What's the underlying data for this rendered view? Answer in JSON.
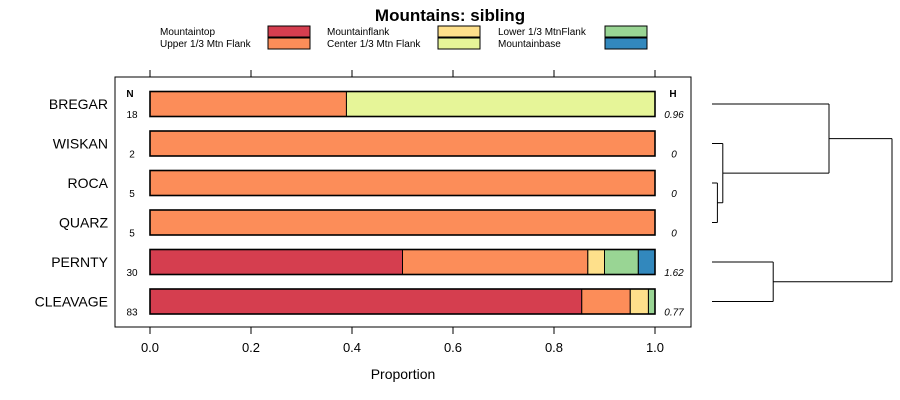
{
  "chart_data": {
    "type": "bar",
    "stacked": true,
    "orientation": "horizontal",
    "title": "Mountains: sibling",
    "xlabel": "Proportion",
    "ylabel": "",
    "xlim": [
      0,
      1
    ],
    "xticks": [
      "0.0",
      "0.2",
      "0.4",
      "0.6",
      "0.8",
      "1.0"
    ],
    "xtick_values": [
      0,
      0.2,
      0.4,
      0.6,
      0.8,
      1.0
    ],
    "n_header": "N",
    "h_header": "H",
    "legend": [
      {
        "name": "Mountaintop",
        "color": "#d53e4f"
      },
      {
        "name": "Upper 1/3 Mtn Flank",
        "color": "#fc8d59"
      },
      {
        "name": "Mountainflank",
        "color": "#fee08b"
      },
      {
        "name": "Center 1/3 Mtn Flank",
        "color": "#e6f598"
      },
      {
        "name": "Lower 1/3 MtnFlank",
        "color": "#99d594"
      },
      {
        "name": "Mountainbase",
        "color": "#3288bd"
      }
    ],
    "categories": [
      "BREGAR",
      "WISKAN",
      "ROCA",
      "QUARZ",
      "PERNTY",
      "CLEAVAGE"
    ],
    "n_values": [
      "18",
      "2",
      "5",
      "5",
      "30",
      "83"
    ],
    "h_values": [
      "0.96",
      "0",
      "0",
      "0",
      "1.62",
      "0.77"
    ],
    "series": [
      {
        "name": "Mountaintop",
        "values": [
          0,
          0,
          0,
          0,
          0.5,
          0.855
        ]
      },
      {
        "name": "Upper 1/3 Mtn Flank",
        "values": [
          0.389,
          1,
          1,
          1,
          0.367,
          0.096
        ]
      },
      {
        "name": "Mountainflank",
        "values": [
          0,
          0,
          0,
          0,
          0.033,
          0.036
        ]
      },
      {
        "name": "Center 1/3 Mtn Flank",
        "values": [
          0.611,
          0,
          0,
          0,
          0,
          0
        ]
      },
      {
        "name": "Lower 1/3 MtnFlank",
        "values": [
          0,
          0,
          0,
          0,
          0.067,
          0.013
        ]
      },
      {
        "name": "Mountainbase",
        "values": [
          0,
          0,
          0,
          0,
          0.033,
          0
        ]
      }
    ],
    "dendrogram": {
      "leaf_order": [
        "BREGAR",
        "WISKAN",
        "ROCA",
        "QUARZ",
        "PERNTY",
        "CLEAVAGE"
      ],
      "merges": [
        {
          "children": [
            "ROCA",
            "QUARZ"
          ],
          "height": 0.03
        },
        {
          "children": [
            "WISKAN",
            "ROCA+QUARZ"
          ],
          "height": 0.06
        },
        {
          "children": [
            "PERNTY",
            "CLEAVAGE"
          ],
          "height": 0.34
        },
        {
          "children": [
            "BREGAR",
            "WISKAN+ROCA+QUARZ"
          ],
          "height": 0.65
        },
        {
          "children": [
            "BREGAR+WISKAN+ROCA+QUARZ",
            "PERNTY+CLEAVAGE"
          ],
          "height": 1.0
        }
      ]
    }
  }
}
